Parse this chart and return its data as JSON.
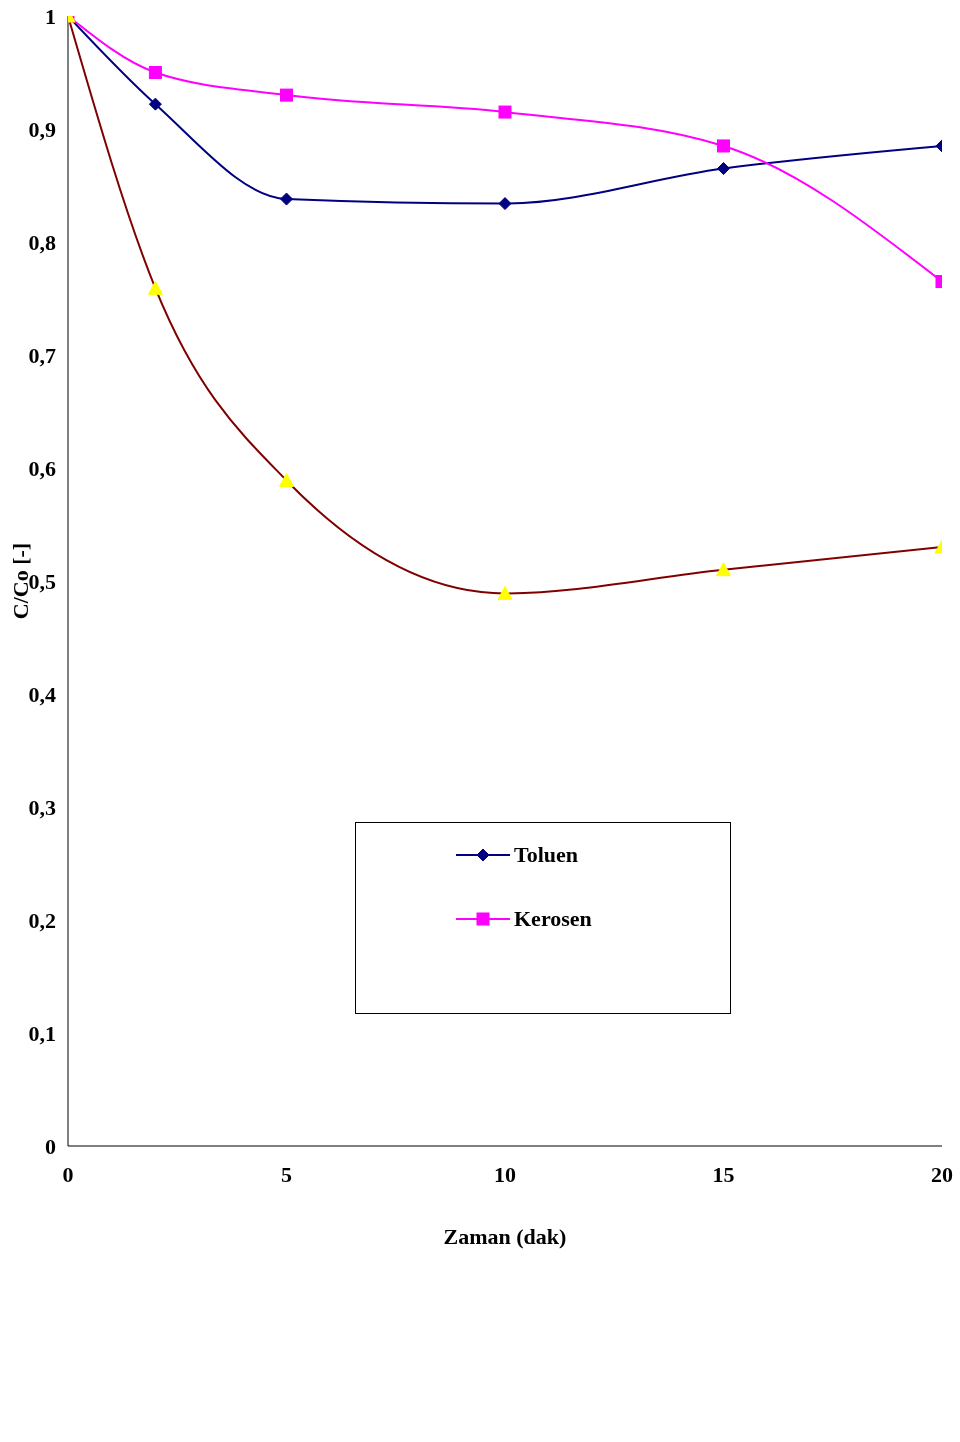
{
  "chart_data": {
    "type": "line",
    "xlabel": "Zaman (dak)",
    "ylabel": "C/Co [-]",
    "x": [
      0,
      2,
      5,
      10,
      15,
      20
    ],
    "xlim": [
      0,
      20
    ],
    "xticks": [
      0,
      5,
      10,
      15,
      20
    ],
    "ylim": [
      0,
      1
    ],
    "yticks": [
      {
        "value": 0,
        "label": "0"
      },
      {
        "value": 0.1,
        "label": "0,1"
      },
      {
        "value": 0.2,
        "label": "0,2"
      },
      {
        "value": 0.3,
        "label": "0,3"
      },
      {
        "value": 0.4,
        "label": "0,4"
      },
      {
        "value": 0.5,
        "label": "0,5"
      },
      {
        "value": 0.6,
        "label": "0,6"
      },
      {
        "value": 0.7,
        "label": "0,7"
      },
      {
        "value": 0.8,
        "label": "0,8"
      },
      {
        "value": 0.9,
        "label": "0,9"
      },
      {
        "value": 1,
        "label": "1"
      }
    ],
    "legend": "center",
    "line_style": "solid",
    "series": [
      {
        "name": "Toluen",
        "color": "#000080",
        "marker": "diamond",
        "values": [
          1,
          0.922,
          0.838,
          0.834,
          0.865,
          0.885
        ]
      },
      {
        "name": "Kerosen",
        "color": "#ff00ff",
        "marker": "square",
        "values": [
          1,
          0.95,
          0.93,
          0.915,
          0.885,
          0.765
        ]
      },
      {
        "color": "#800000",
        "colors": [
          "#ffff00",
          "#ffff00",
          "#ffff00",
          "#ffff00",
          "#ffff00",
          "#ffff00"
        ],
        "marker": "triangle",
        "values": [
          1,
          0.759,
          0.589,
          0.489,
          0.51,
          0.53
        ]
      }
    ]
  }
}
